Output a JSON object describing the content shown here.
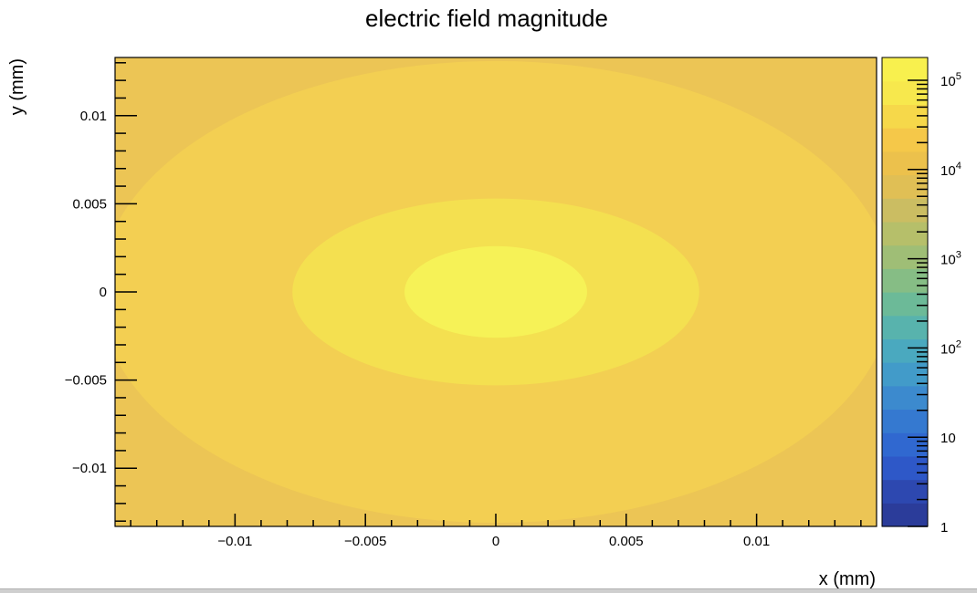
{
  "chart_data": {
    "type": "heatmap",
    "title": "electric field magnitude",
    "xlabel": "x (mm)",
    "ylabel": "y (mm)",
    "xlim": [
      -0.0146,
      0.0146
    ],
    "ylim": [
      -0.0133,
      0.0133
    ],
    "x_ticks": [
      {
        "value": -0.01,
        "label": "−0.01"
      },
      {
        "value": -0.005,
        "label": "−0.005"
      },
      {
        "value": 0,
        "label": "0"
      },
      {
        "value": 0.005,
        "label": "0.005"
      },
      {
        "value": 0.01,
        "label": "0.01"
      }
    ],
    "y_ticks": [
      {
        "value": 0.01,
        "label": "0.01"
      },
      {
        "value": 0.005,
        "label": "0.005"
      },
      {
        "value": 0,
        "label": "0"
      },
      {
        "value": -0.005,
        "label": "−0.005"
      },
      {
        "value": -0.01,
        "label": "−0.01"
      }
    ],
    "colorbar": {
      "scale": "log",
      "range": [
        1,
        180000
      ],
      "tick_labels": [
        {
          "value": 1,
          "base": "1",
          "exp": ""
        },
        {
          "value": 10,
          "base": "10",
          "exp": ""
        },
        {
          "value": 100,
          "base": "10",
          "exp": "2"
        },
        {
          "value": 1000,
          "base": "10",
          "exp": "3"
        },
        {
          "value": 10000,
          "base": "10",
          "exp": "4"
        },
        {
          "value": 100000,
          "base": "10",
          "exp": "5"
        }
      ],
      "colors": [
        "#2b3c9a",
        "#2d48b0",
        "#2e58c8",
        "#3068d0",
        "#3579d0",
        "#3c8ace",
        "#429bc9",
        "#4aa9bf",
        "#58b3ad",
        "#6cba98",
        "#86bd85",
        "#9fbe76",
        "#b6bf6a",
        "#cbbd62",
        "#e0bf55",
        "#ecc14c",
        "#f5c849",
        "#f6d84a",
        "#f7e84d",
        "#f8f04e"
      ]
    },
    "contours": [
      {
        "level": 40000,
        "color": "#ecc555",
        "shape": "corner regions"
      },
      {
        "level": 50000,
        "color": "#f3cf52",
        "semi_axes": [
          0.0152,
          0.0131
        ]
      },
      {
        "level": 70000,
        "color": "#f4e050",
        "semi_axes": [
          0.0078,
          0.0053
        ]
      },
      {
        "level": 100000,
        "color": "#f6f257",
        "semi_axes": [
          0.0035,
          0.0026
        ]
      }
    ],
    "grid": false,
    "legend": "colorbar right"
  }
}
